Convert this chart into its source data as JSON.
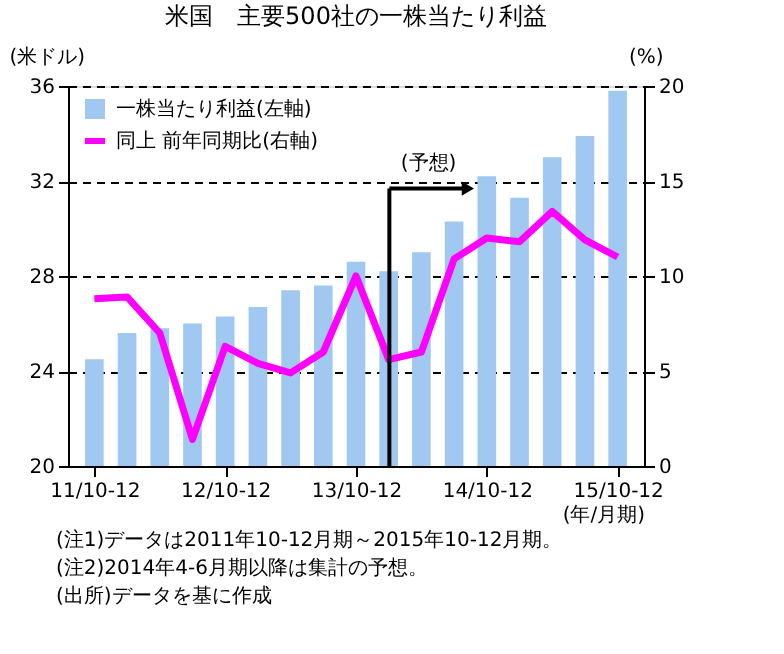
{
  "chart_data": {
    "type": "bar",
    "title": "米国　主要500社の一株当たり利益",
    "ylabel": "(米ドル)",
    "y2label": "(%)",
    "xlabel": "(年/月期)",
    "categories": [
      "11/10-12",
      null,
      null,
      null,
      "12/10-12",
      null,
      null,
      null,
      "13/10-12",
      null,
      null,
      null,
      "14/10-12",
      null,
      null,
      null,
      "15/10-12"
    ],
    "series": [
      {
        "name": "一株当たり利益(左軸)",
        "color": "#a0c8f0",
        "values": [
          24.5,
          25.6,
          25.8,
          26.0,
          26.3,
          26.7,
          27.4,
          27.6,
          28.6,
          28.2,
          29.0,
          30.3,
          32.2,
          31.3,
          33.0,
          33.9,
          35.8
        ]
      },
      {
        "name": "同上  前年同期比(右軸)",
        "type": "line",
        "axis": "y2",
        "color": "#ff00ff",
        "values": [
          8.8,
          8.9,
          7.0,
          1.4,
          6.3,
          5.4,
          4.9,
          6.0,
          10.0,
          5.6,
          6.0,
          10.9,
          12.0,
          11.8,
          13.4,
          11.9,
          11.0
        ]
      }
    ],
    "ylim": [
      20,
      36
    ],
    "yticks": [
      20,
      24,
      28,
      32,
      36
    ],
    "y2lim": [
      0,
      20
    ],
    "y2ticks": [
      0,
      5,
      10,
      15,
      20
    ],
    "grid": "y",
    "legend": "top left",
    "annotations": [
      "(予想)",
      "(注1)データは2011年10-12月期～2015年10-12月期。",
      "(注2)2014年4-6月期以降は集計の予想。",
      "(出所)データを基に作成"
    ]
  }
}
